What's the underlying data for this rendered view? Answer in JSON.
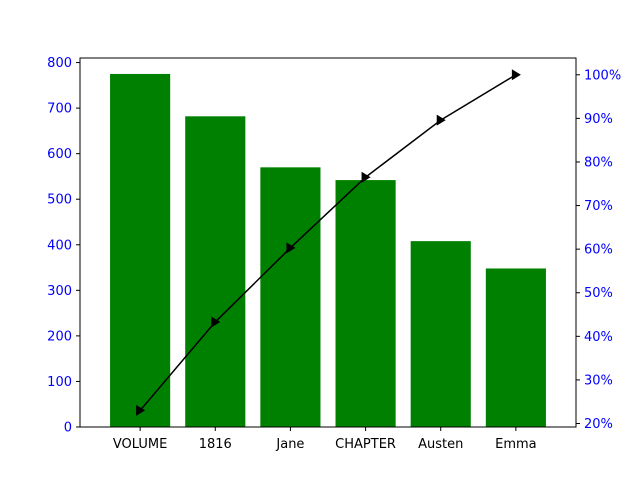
{
  "chart_data": {
    "type": "bar",
    "categories": [
      "VOLUME",
      "1816",
      "Jane",
      "CHAPTER",
      "Austen",
      "Emma"
    ],
    "series": [
      {
        "type": "bar",
        "axis": "left",
        "values": [
          775,
          682,
          570,
          542,
          408,
          348
        ]
      },
      {
        "type": "line",
        "axis": "right",
        "marker": "triangle-right",
        "values": [
          23.0,
          43.3,
          60.3,
          76.5,
          89.6,
          100.0
        ]
      }
    ],
    "y_left": {
      "ylim": [
        0,
        810
      ],
      "ticks": [
        0,
        100,
        200,
        300,
        400,
        500,
        600,
        700,
        800
      ],
      "tick_labels": [
        "0",
        "100",
        "200",
        "300",
        "400",
        "500",
        "600",
        "700",
        "800"
      ]
    },
    "y_right": {
      "ylim": [
        19.2,
        103.85
      ],
      "ticks": [
        20,
        30,
        40,
        50,
        60,
        70,
        80,
        90,
        100
      ],
      "tick_labels": [
        "20%",
        "30%",
        "40%",
        "50%",
        "60%",
        "70%",
        "80%",
        "90%",
        "100%"
      ]
    },
    "title": "",
    "xlabel": "",
    "ylabel": "",
    "grid": false,
    "colors": {
      "bar": "#008000",
      "line": "#000000",
      "tick_label": "#0000ff",
      "x_tick_label": "#000000"
    }
  }
}
